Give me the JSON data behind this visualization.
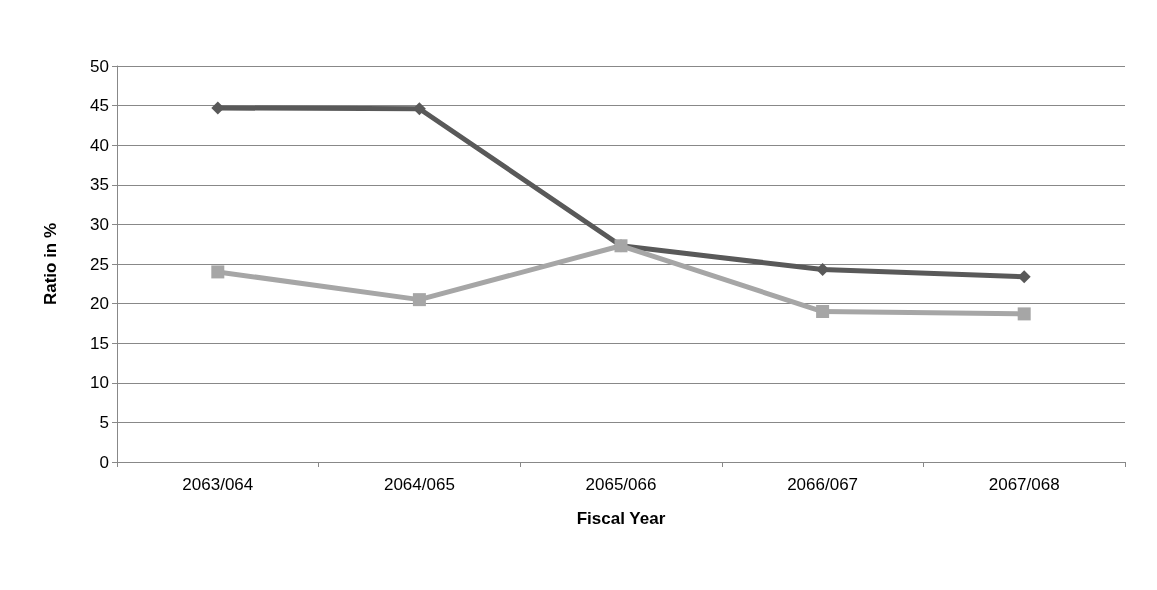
{
  "chart_data": {
    "type": "line",
    "xlabel": "Fiscal Year",
    "ylabel": "Ratio in %",
    "categories": [
      "2063/064",
      "2064/065",
      "2065/066",
      "2066/067",
      "2067/068"
    ],
    "series": [
      {
        "color": "#595959",
        "marker": "diamond",
        "values": [
          44.7,
          44.6,
          27.3,
          24.3,
          23.4
        ]
      },
      {
        "color": "#a6a6a6",
        "marker": "square",
        "values": [
          24.0,
          20.5,
          27.3,
          19.0,
          18.7
        ]
      }
    ],
    "ylim": [
      0,
      50
    ],
    "yticks": [
      0,
      5,
      10,
      15,
      20,
      25,
      30,
      35,
      40,
      45,
      50
    ],
    "grid": "y",
    "line_style": "solid"
  }
}
